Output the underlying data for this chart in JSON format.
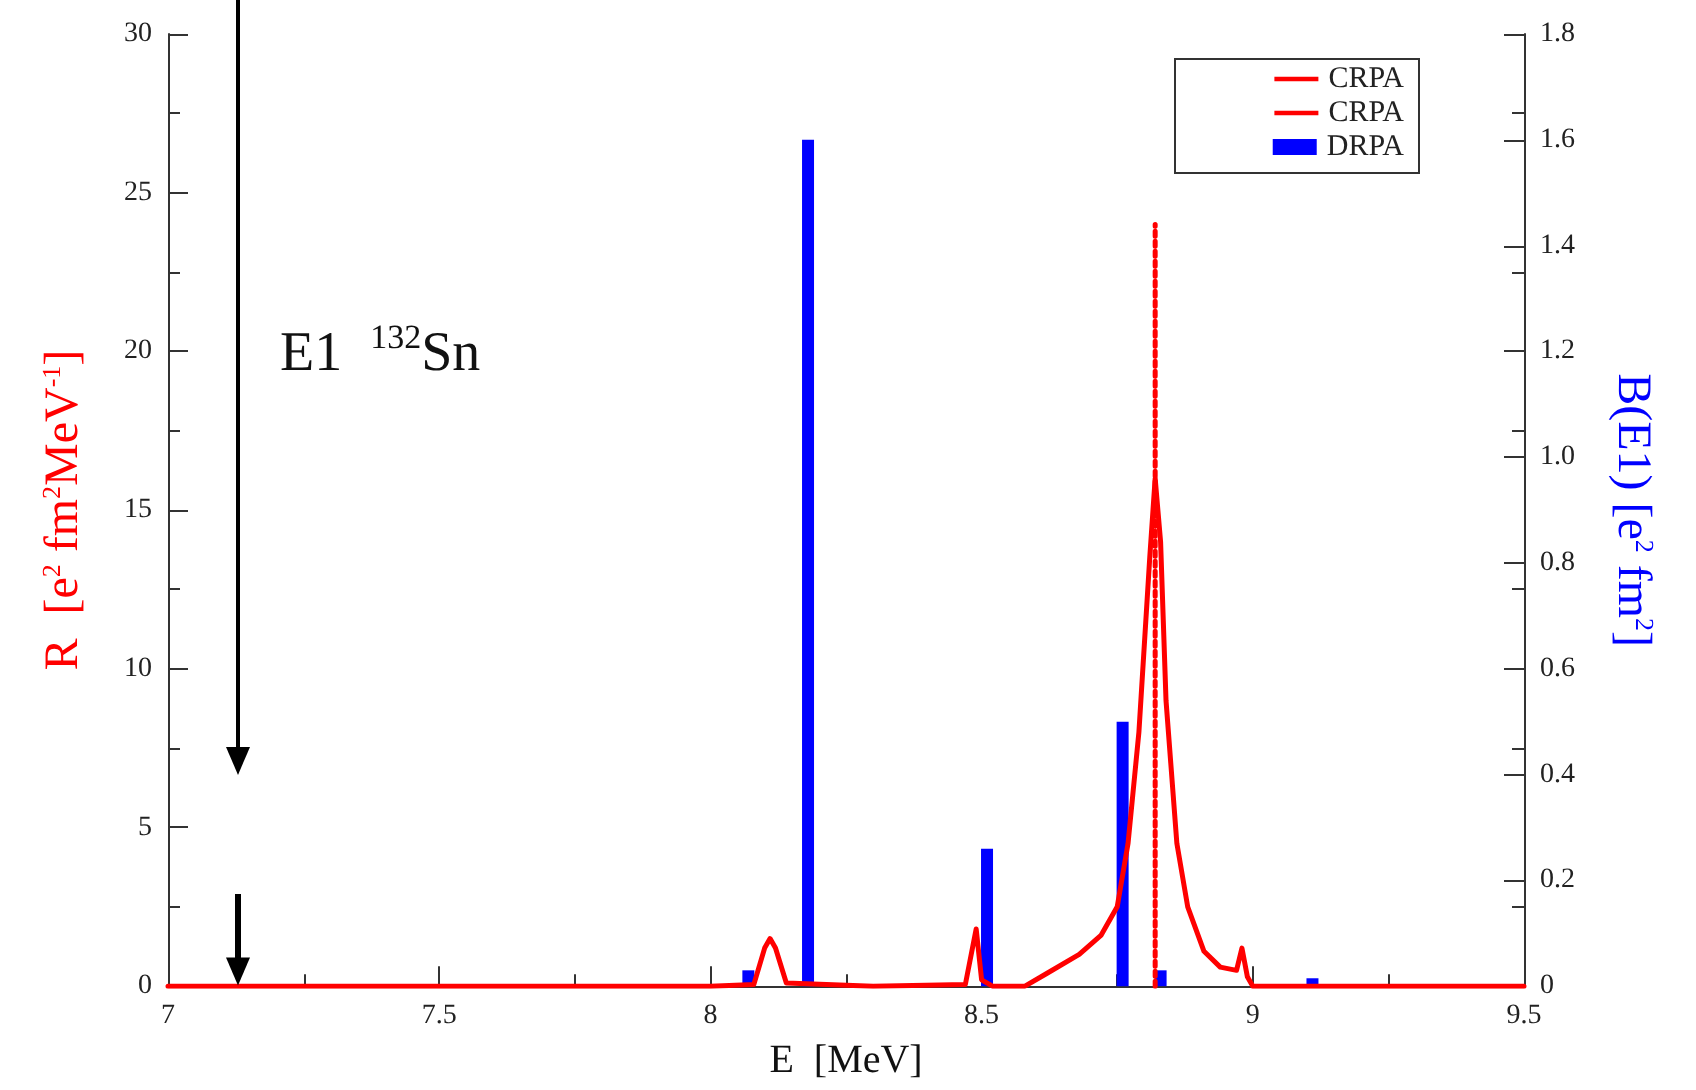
{
  "chart_data": {
    "type": "line",
    "xlabel": "E  [MeV]",
    "ylabel": "R  [e$^{2}$ fm$^{2}$MeV$^{-1}$]",
    "y2label": "B(E1) [e$^{2}$ fm$^{2}$]",
    "annotations": [
      "E1  $^{132}$Sn"
    ],
    "series": [
      {
        "name": "CRPA",
        "color": "#ff0000",
        "line_style": "solid",
        "x": [
          7.0,
          8.0,
          8.08,
          8.1,
          8.11,
          8.12,
          8.14,
          8.3,
          8.47,
          8.49,
          8.5,
          8.52,
          8.58,
          8.62,
          8.68,
          8.72,
          8.75,
          8.77,
          8.79,
          8.81,
          8.82,
          8.83,
          8.84,
          8.86,
          8.88,
          8.91,
          8.94,
          8.97,
          8.98,
          8.99,
          9.0,
          9.5
        ],
        "values": [
          0,
          0,
          0.05,
          1.2,
          1.5,
          1.2,
          0.1,
          0,
          0.05,
          1.8,
          0.2,
          0,
          0,
          0.4,
          1.0,
          1.6,
          2.5,
          4.5,
          8,
          13.5,
          16,
          14,
          9,
          4.5,
          2.5,
          1.1,
          0.6,
          0.5,
          1.2,
          0.3,
          0,
          0
        ]
      },
      {
        "name": "CRPA",
        "type": "line",
        "color": "#ff0000",
        "line_style": "dotted",
        "x": [
          8.82,
          8.82
        ],
        "values": [
          0,
          24
        ]
      },
      {
        "name": "DRPA",
        "type": "bar",
        "color": "#0000ff",
        "axis": "y2",
        "x": [
          8.07,
          8.18,
          8.51,
          8.76,
          8.83,
          9.11
        ],
        "values": [
          0.03,
          1.6,
          0.26,
          0.5,
          0.03,
          0.015
        ]
      }
    ],
    "xlim": [
      7,
      9.5
    ],
    "xticks": [
      7,
      7.5,
      8,
      8.5,
      9,
      9.5
    ],
    "ylim": [
      0,
      30
    ],
    "yticks": [
      0,
      5,
      10,
      15,
      20,
      25,
      30
    ],
    "y2lim": [
      0,
      1.8
    ],
    "y2ticks": [
      0,
      0.2,
      0.4,
      0.6,
      0.8,
      {
        "value": 1,
        "label": "1.0"
      },
      1.2,
      1.4,
      1.6,
      1.8
    ],
    "grid": false,
    "legend": "top right",
    "marker": "none"
  }
}
